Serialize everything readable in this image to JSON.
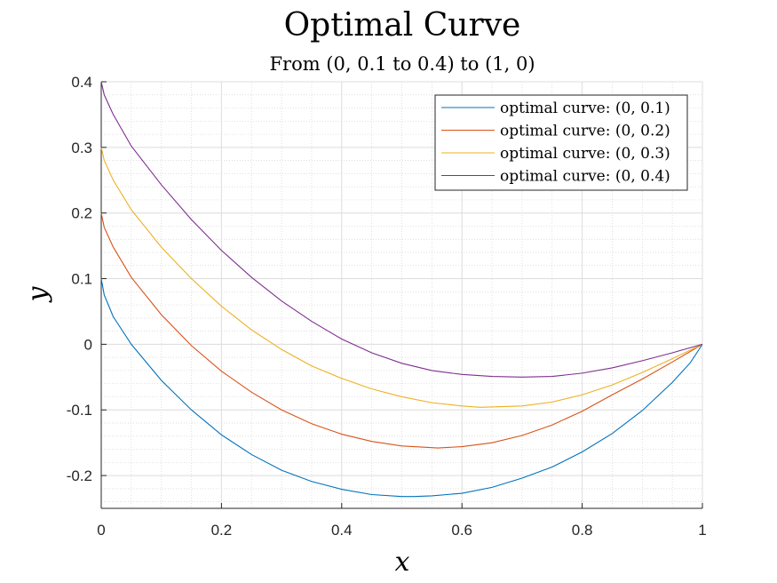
{
  "chart_data": {
    "type": "line",
    "title": "Optimal Curve",
    "subtitle": "From (0, 0.1 to 0.4) to (1, 0)",
    "xlabel": "x",
    "ylabel": "y",
    "xlim": [
      0,
      1
    ],
    "ylim": [
      -0.25,
      0.4
    ],
    "x_ticks": [
      0,
      0.2,
      0.4,
      0.6,
      0.8,
      1
    ],
    "x_tick_labels": [
      "0",
      "0.2",
      "0.4",
      "0.6",
      "0.8",
      "1"
    ],
    "y_ticks": [
      -0.2,
      -0.1,
      0,
      0.1,
      0.2,
      0.3,
      0.4
    ],
    "y_tick_labels": [
      "-0.2",
      "-0.1",
      "0",
      "0.1",
      "0.2",
      "0.3",
      "0.4"
    ],
    "grid": true,
    "minor_grid": true,
    "legend_position": "top-right",
    "series": [
      {
        "name": "optimal curve: (0, 0.1)",
        "color": "#0072BD",
        "x": [
          0,
          0.005,
          0.02,
          0.05,
          0.1,
          0.15,
          0.2,
          0.25,
          0.3,
          0.35,
          0.4,
          0.45,
          0.5,
          0.52,
          0.55,
          0.6,
          0.65,
          0.7,
          0.75,
          0.8,
          0.85,
          0.9,
          0.95,
          0.98,
          1
        ],
        "y": [
          0.1,
          0.075,
          0.042,
          0.0,
          -0.055,
          -0.1,
          -0.138,
          -0.168,
          -0.192,
          -0.209,
          -0.221,
          -0.229,
          -0.232,
          -0.232,
          -0.231,
          -0.227,
          -0.218,
          -0.204,
          -0.187,
          -0.164,
          -0.136,
          -0.101,
          -0.058,
          -0.028,
          0
        ]
      },
      {
        "name": "optimal curve: (0, 0.2)",
        "color": "#D95319",
        "x": [
          0,
          0.005,
          0.02,
          0.05,
          0.1,
          0.15,
          0.2,
          0.25,
          0.3,
          0.35,
          0.4,
          0.45,
          0.5,
          0.56,
          0.6,
          0.65,
          0.7,
          0.75,
          0.8,
          0.85,
          0.9,
          0.95,
          1
        ],
        "y": [
          0.2,
          0.178,
          0.148,
          0.102,
          0.045,
          -0.002,
          -0.041,
          -0.073,
          -0.1,
          -0.121,
          -0.137,
          -0.148,
          -0.155,
          -0.158,
          -0.156,
          -0.15,
          -0.139,
          -0.123,
          -0.102,
          -0.077,
          -0.053,
          -0.027,
          0
        ]
      },
      {
        "name": "optimal curve: (0, 0.3)",
        "color": "#EDB120",
        "x": [
          0,
          0.005,
          0.02,
          0.05,
          0.1,
          0.15,
          0.2,
          0.25,
          0.3,
          0.35,
          0.4,
          0.45,
          0.5,
          0.55,
          0.6,
          0.63,
          0.7,
          0.75,
          0.8,
          0.85,
          0.9,
          0.95,
          1
        ],
        "y": [
          0.3,
          0.28,
          0.25,
          0.205,
          0.148,
          0.1,
          0.058,
          0.022,
          -0.008,
          -0.033,
          -0.052,
          -0.068,
          -0.08,
          -0.089,
          -0.094,
          -0.096,
          -0.094,
          -0.088,
          -0.077,
          -0.062,
          -0.043,
          -0.022,
          0
        ]
      },
      {
        "name": "optimal curve: (0, 0.4)",
        "color": "#7E2F8E",
        "x": [
          0,
          0.005,
          0.02,
          0.05,
          0.1,
          0.15,
          0.2,
          0.25,
          0.3,
          0.35,
          0.4,
          0.45,
          0.5,
          0.55,
          0.6,
          0.65,
          0.7,
          0.75,
          0.8,
          0.85,
          0.9,
          0.95,
          1
        ],
        "y": [
          0.4,
          0.38,
          0.35,
          0.302,
          0.243,
          0.19,
          0.143,
          0.102,
          0.066,
          0.035,
          0.008,
          -0.013,
          -0.029,
          -0.04,
          -0.046,
          -0.049,
          -0.05,
          -0.049,
          -0.044,
          -0.036,
          -0.025,
          -0.013,
          0
        ]
      }
    ]
  }
}
